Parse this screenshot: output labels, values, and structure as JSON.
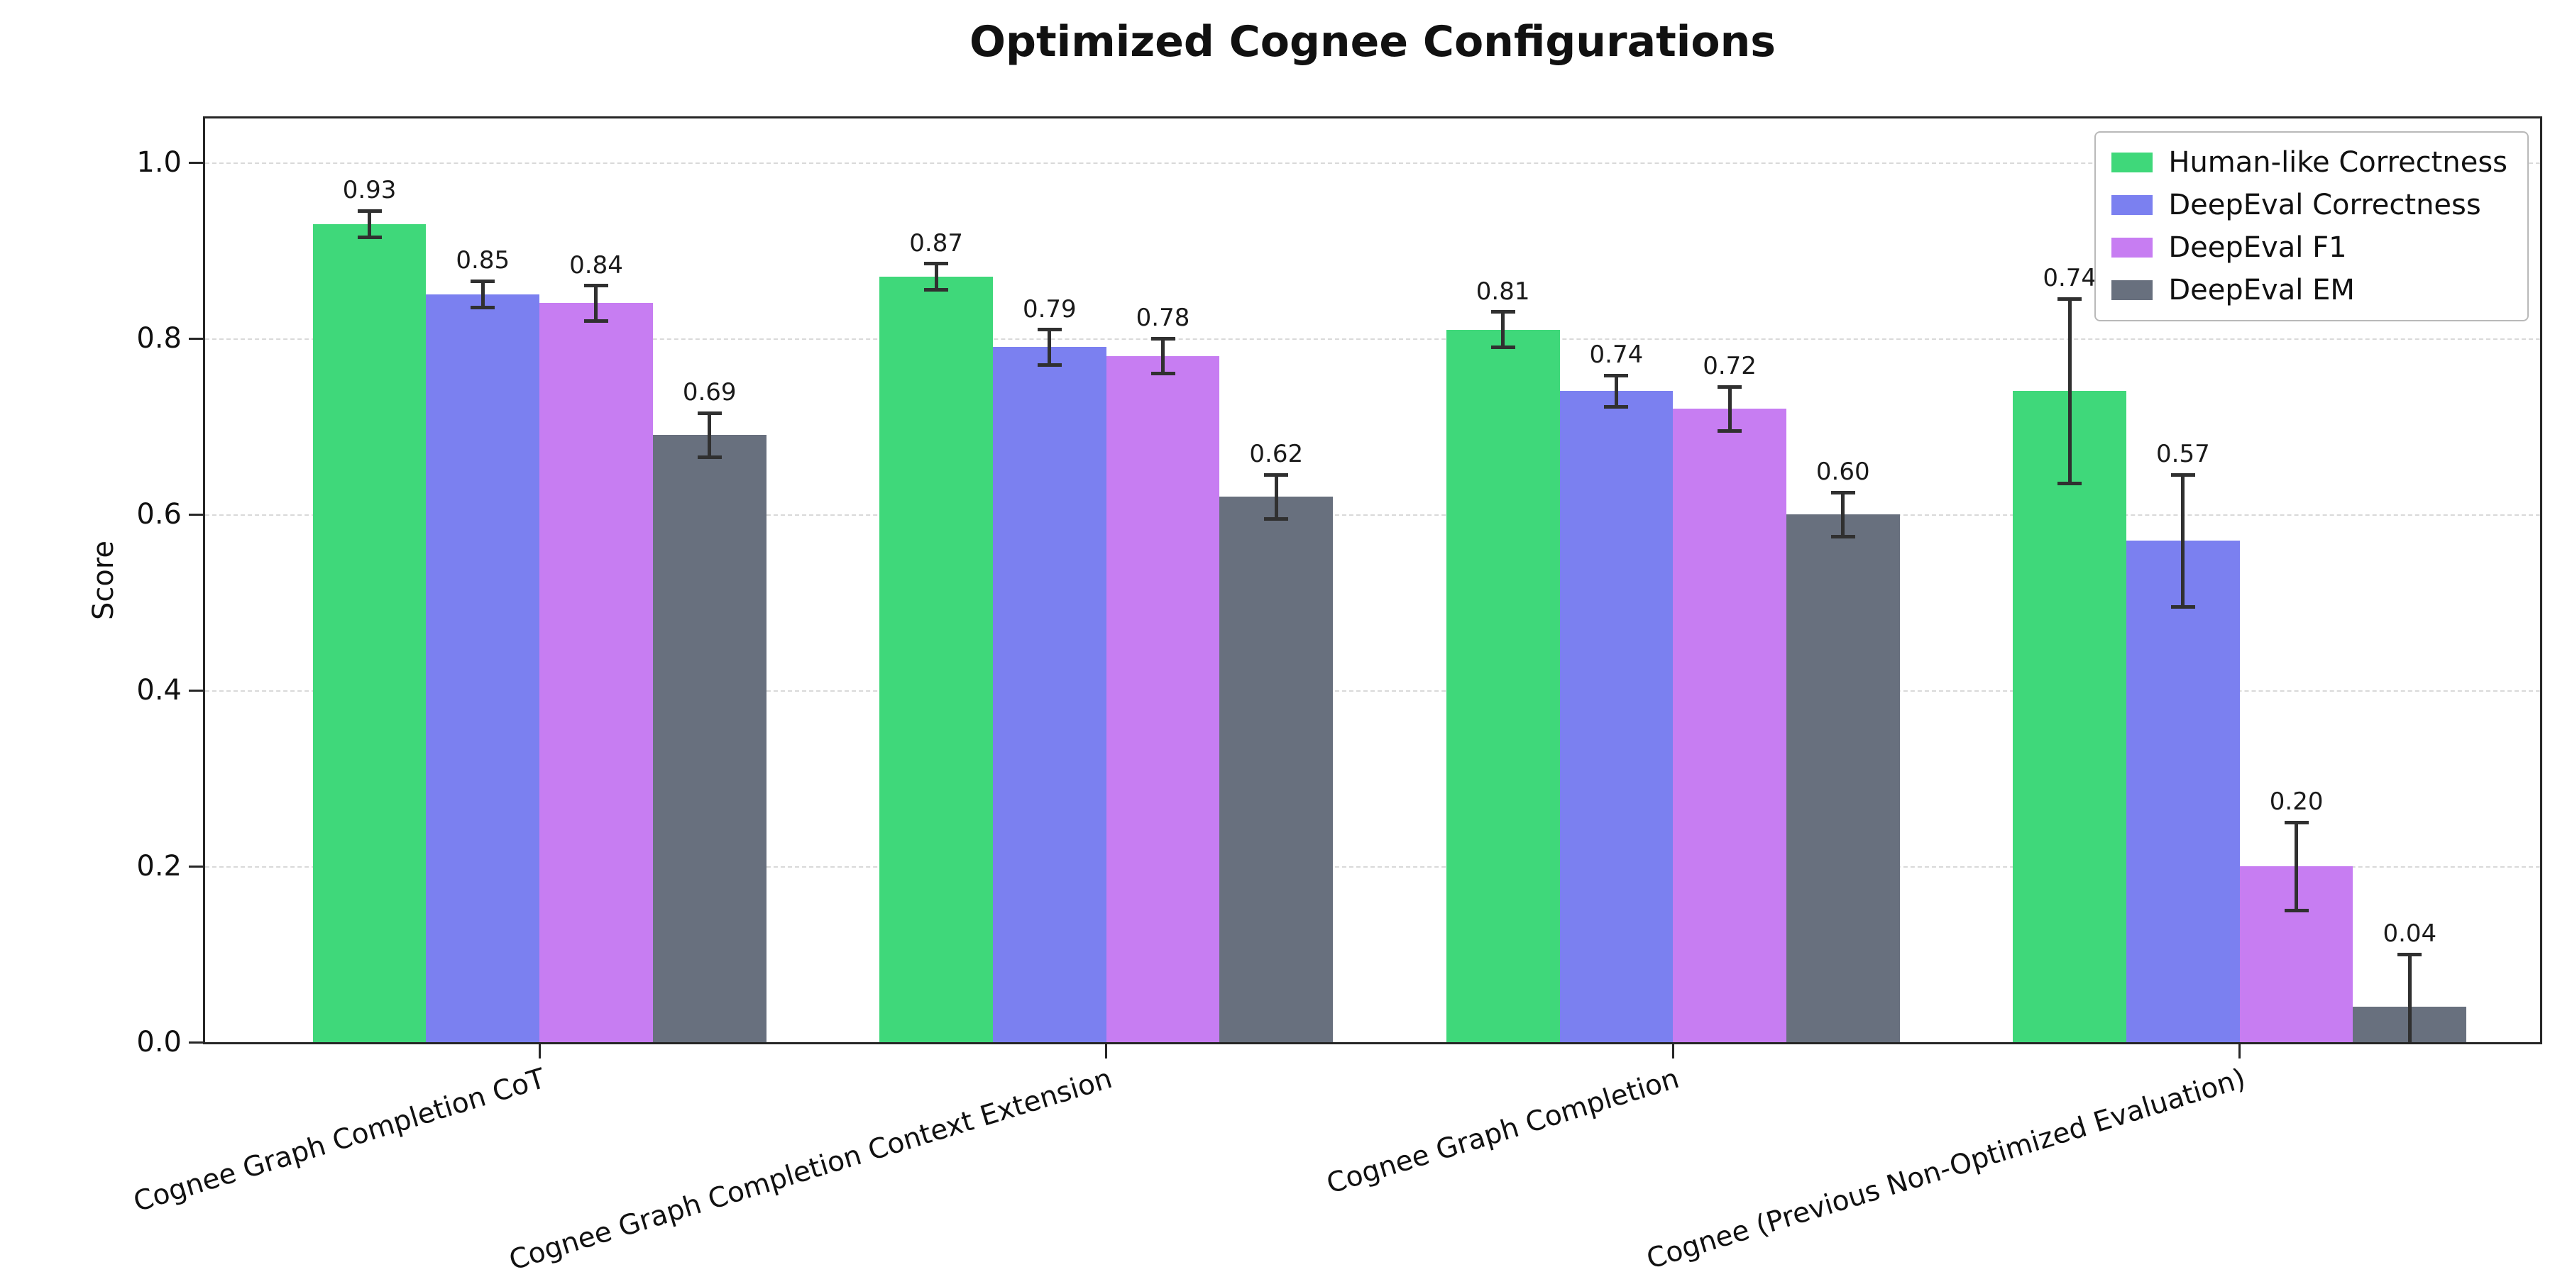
{
  "chart_data": {
    "type": "bar",
    "title": "Optimized Cognee Configurations",
    "xlabel": "",
    "ylabel": "Score",
    "ylim": [
      0,
      1.05
    ],
    "xlim": [
      -0.59,
      3.53
    ],
    "yticks": [
      0.0,
      0.2,
      0.4,
      0.6,
      0.8,
      1.0
    ],
    "grid": "horizontal, dashed",
    "legend_position": "upper right",
    "bar_width": 0.2,
    "bar_offsets": [
      -0.3,
      -0.1,
      0.1,
      0.3
    ],
    "error_bar_color": "#303030",
    "categories": [
      "Cognee Graph Completion CoT",
      "Cognee Graph Completion Context Extension",
      "Cognee Graph Completion",
      "Cognee (Previous Non-Optimized Evaluation)"
    ],
    "series": [
      {
        "name": "Human-like Correctness",
        "color": "#3fd87a",
        "values": [
          0.93,
          0.87,
          0.81,
          0.74
        ],
        "errors": [
          0.015,
          0.015,
          0.02,
          0.105
        ]
      },
      {
        "name": "DeepEval Correctness",
        "color": "#7b80f0",
        "values": [
          0.85,
          0.79,
          0.74,
          0.57
        ],
        "errors": [
          0.015,
          0.02,
          0.018,
          0.075
        ]
      },
      {
        "name": "DeepEval F1",
        "color": "#c77df2",
        "values": [
          0.84,
          0.78,
          0.72,
          0.2
        ],
        "errors": [
          0.02,
          0.02,
          0.025,
          0.05
        ]
      },
      {
        "name": "DeepEval EM",
        "color": "#68707e",
        "values": [
          0.69,
          0.62,
          0.6,
          0.04
        ],
        "errors": [
          0.025,
          0.025,
          0.025,
          0.06
        ]
      }
    ]
  }
}
